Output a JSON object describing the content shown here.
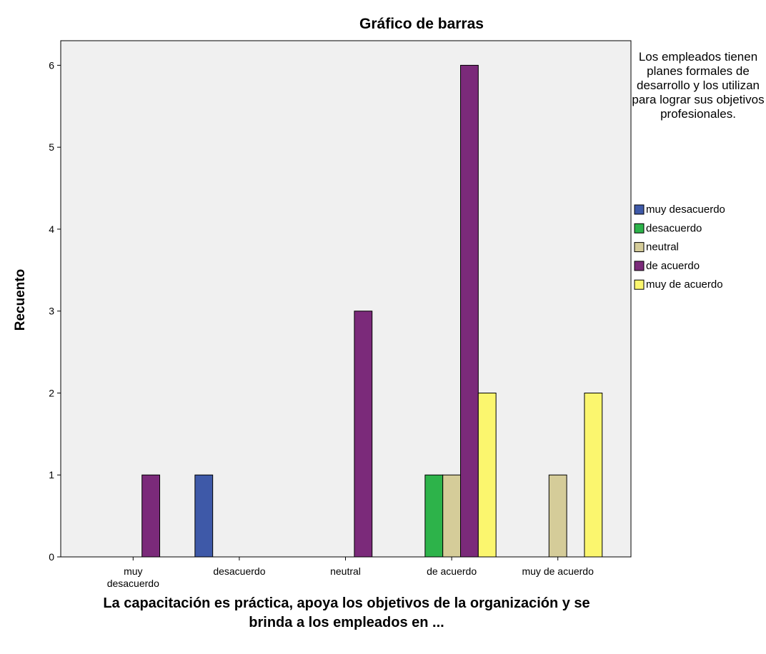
{
  "chart_data": {
    "type": "bar",
    "title": "Gráfico de barras",
    "x_label": "La capacitación es práctica, apoya los objetivos de la organización y se brinda a los empleados en ...",
    "y_label": "Recuento",
    "legend_title": "Los empleados tienen planes formales de desarrollo y los utilizan para lograr sus objetivos profesionales.",
    "legend_position": "right",
    "categories": [
      "muy desacuerdo",
      "desacuerdo",
      "neutral",
      "de acuerdo",
      "muy de acuerdo"
    ],
    "series": [
      {
        "name": "muy desacuerdo",
        "color": "#3e59a8",
        "values": [
          null,
          1,
          null,
          null,
          null
        ]
      },
      {
        "name": "desacuerdo",
        "color": "#2db34a",
        "values": [
          null,
          null,
          null,
          1,
          null
        ]
      },
      {
        "name": "neutral",
        "color": "#d5cc99",
        "values": [
          null,
          null,
          null,
          1,
          1
        ]
      },
      {
        "name": "de acuerdo",
        "color": "#7b2a7a",
        "values": [
          1,
          null,
          3,
          6,
          null
        ]
      },
      {
        "name": "muy de acuerdo",
        "color": "#fbf66e",
        "values": [
          null,
          null,
          null,
          2,
          2
        ]
      }
    ],
    "ylim": [
      0,
      6.3
    ],
    "yticks": [
      0,
      1,
      2,
      3,
      4,
      5,
      6
    ]
  }
}
